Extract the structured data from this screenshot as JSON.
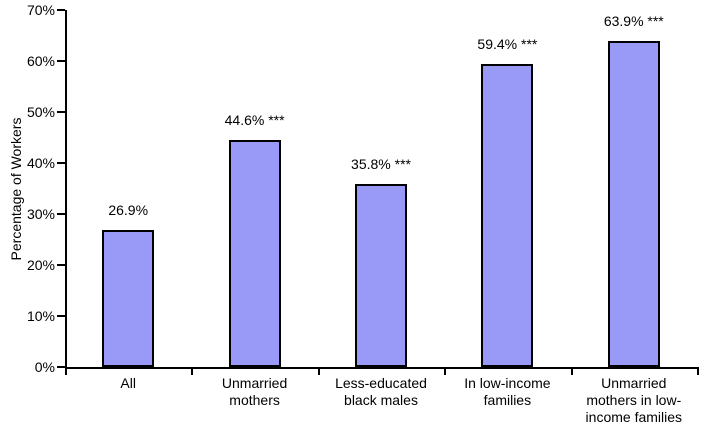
{
  "chart_data": {
    "type": "bar",
    "ylabel": "Percentage of Workers",
    "ylim": [
      0,
      70
    ],
    "ytick_step": 10,
    "ytick_labels": [
      "0%",
      "10%",
      "20%",
      "30%",
      "40%",
      "50%",
      "60%",
      "70%"
    ],
    "categories": [
      "All",
      "Unmarried\nmothers",
      "Less-educated\nblack males",
      "In low-income\nfamilies",
      "Unmarried\nmothers in low-\nincome families"
    ],
    "values": [
      26.9,
      44.6,
      35.8,
      59.4,
      63.9
    ],
    "bar_labels": [
      "26.9%",
      "44.6% ***",
      "35.8% ***",
      "59.4% ***",
      "63.9% ***"
    ],
    "grid": false,
    "legend": "none",
    "colors": {
      "bar_fill": "#9999F8",
      "bar_border": "#000000",
      "axis": "#000000",
      "text": "#000000",
      "background": "#FFFFFF"
    }
  }
}
